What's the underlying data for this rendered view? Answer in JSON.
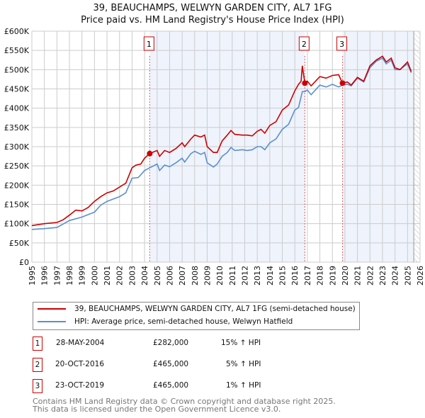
{
  "title": "39, BEAUCHAMPS, WELWYN GARDEN CITY, AL7 1FG",
  "subtitle": "Price paid vs. HM Land Registry's House Price Index (HPI)",
  "chart_data": {
    "type": "line",
    "xlim": [
      1995,
      2026
    ],
    "ylim": [
      0,
      600000
    ],
    "yticks": [
      0,
      50000,
      100000,
      150000,
      200000,
      250000,
      300000,
      350000,
      400000,
      450000,
      500000,
      550000,
      600000
    ],
    "ytick_labels": [
      "£0",
      "£50K",
      "£100K",
      "£150K",
      "£200K",
      "£250K",
      "£300K",
      "£350K",
      "£400K",
      "£450K",
      "£500K",
      "£550K",
      "£600K"
    ],
    "xticks": [
      "1995",
      "1996",
      "1997",
      "1998",
      "1999",
      "2000",
      "2001",
      "2002",
      "2003",
      "2004",
      "2005",
      "2006",
      "2007",
      "2008",
      "2009",
      "2010",
      "2011",
      "2012",
      "2013",
      "2014",
      "2015",
      "2016",
      "2017",
      "2018",
      "2019",
      "2020",
      "2021",
      "2022",
      "2023",
      "2024",
      "2025",
      "2026"
    ],
    "series": [
      {
        "name": "39, BEAUCHAMPS, WELWYN GARDEN CITY, AL7 1FG (semi-detached house)",
        "color": "#cc0000",
        "x": [
          1995,
          1996,
          1997,
          1997.5,
          1998,
          1998.5,
          1999,
          1999.5,
          2000,
          2000.5,
          2001,
          2001.5,
          2002,
          2002.5,
          2003,
          2003.3,
          2003.7,
          2004,
          2004.4,
          2005,
          2005.2,
          2005.6,
          2006,
          2006.5,
          2007,
          2007.2,
          2007.7,
          2008,
          2008.5,
          2008.8,
          2009,
          2009.5,
          2009.8,
          2010.2,
          2010.6,
          2010.9,
          2011.2,
          2011.8,
          2012.2,
          2012.6,
          2013,
          2013.3,
          2013.6,
          2014,
          2014.5,
          2015,
          2015.5,
          2016,
          2016.3,
          2016.5,
          2016.6,
          2016.8,
          2017,
          2017.3,
          2018,
          2018.5,
          2019,
          2019.5,
          2019.8,
          2020.2,
          2020.5,
          2021,
          2021.5,
          2022,
          2022.5,
          2023,
          2023.3,
          2023.7,
          2024,
          2024.4,
          2024.7,
          2025,
          2025.3
        ],
        "y": [
          95000,
          100000,
          103000,
          110000,
          122000,
          135000,
          133000,
          142000,
          158000,
          170000,
          180000,
          185000,
          195000,
          205000,
          245000,
          252000,
          255000,
          270000,
          282000,
          290000,
          275000,
          290000,
          285000,
          295000,
          310000,
          300000,
          320000,
          330000,
          325000,
          330000,
          300000,
          285000,
          285000,
          315000,
          330000,
          342000,
          332000,
          330000,
          330000,
          328000,
          340000,
          345000,
          335000,
          355000,
          365000,
          395000,
          408000,
          445000,
          462000,
          470000,
          510000,
          465000,
          470000,
          458000,
          482000,
          478000,
          485000,
          487000,
          465000,
          468000,
          460000,
          480000,
          470000,
          510000,
          525000,
          535000,
          520000,
          530000,
          505000,
          500000,
          510000,
          520000,
          495000
        ]
      },
      {
        "name": "HPI: Average price, semi-detached house, Welwyn Hatfield",
        "color": "#5b8fd0",
        "x": [
          1995,
          1996,
          1997,
          1998,
          1999,
          2000,
          2000.5,
          2001,
          2002,
          2002.5,
          2003,
          2003.5,
          2004,
          2004.4,
          2005,
          2005.2,
          2005.6,
          2006,
          2006.5,
          2007,
          2007.2,
          2007.7,
          2008,
          2008.5,
          2008.8,
          2009,
          2009.5,
          2009.8,
          2010.2,
          2010.6,
          2010.9,
          2011.2,
          2011.8,
          2012.2,
          2012.6,
          2013,
          2013.3,
          2013.6,
          2014,
          2014.5,
          2015,
          2015.5,
          2016,
          2016.3,
          2016.6,
          2016.8,
          2017,
          2017.3,
          2018,
          2018.5,
          2019,
          2019.5,
          2019.8,
          2020.2,
          2020.5,
          2021,
          2021.5,
          2022,
          2022.5,
          2023,
          2023.3,
          2023.7,
          2024,
          2024.4,
          2024.7,
          2025,
          2025.3
        ],
        "y": [
          85000,
          87000,
          90000,
          108000,
          117000,
          130000,
          148000,
          158000,
          170000,
          180000,
          218000,
          220000,
          238000,
          245000,
          255000,
          238000,
          252000,
          248000,
          258000,
          270000,
          260000,
          282000,
          288000,
          280000,
          285000,
          258000,
          247000,
          255000,
          275000,
          285000,
          298000,
          290000,
          292000,
          290000,
          292000,
          300000,
          300000,
          292000,
          310000,
          320000,
          345000,
          358000,
          395000,
          402000,
          443000,
          443000,
          447000,
          435000,
          460000,
          455000,
          462000,
          455000,
          460000,
          462000,
          458000,
          478000,
          468000,
          505000,
          522000,
          530000,
          515000,
          525000,
          500000,
          500000,
          508000,
          515000,
          492000
        ]
      }
    ],
    "sales": [
      {
        "label": "1",
        "x": 2004.41,
        "y": 282000
      },
      {
        "label": "2",
        "x": 2016.8,
        "y": 465000
      },
      {
        "label": "3",
        "x": 2019.81,
        "y": 465000
      }
    ],
    "shaded_ranges": [
      [
        2004.41,
        2016.8
      ],
      [
        2019.81,
        2025.5
      ]
    ],
    "forecast_hatch_from": 2025.5
  },
  "legend": [
    "39, BEAUCHAMPS, WELWYN GARDEN CITY, AL7 1FG (semi-detached house)",
    "HPI: Average price, semi-detached house, Welwyn Hatfield"
  ],
  "transactions": [
    {
      "num": "1",
      "date": "28-MAY-2004",
      "price": "£282,000",
      "hpi": "15% ↑ HPI"
    },
    {
      "num": "2",
      "date": "20-OCT-2016",
      "price": "£465,000",
      "hpi": "5% ↑ HPI"
    },
    {
      "num": "3",
      "date": "23-OCT-2019",
      "price": "£465,000",
      "hpi": "1% ↑ HPI"
    }
  ],
  "footer": [
    "Contains HM Land Registry data © Crown copyright and database right 2025.",
    "This data is licensed under the Open Government Licence v3.0."
  ]
}
